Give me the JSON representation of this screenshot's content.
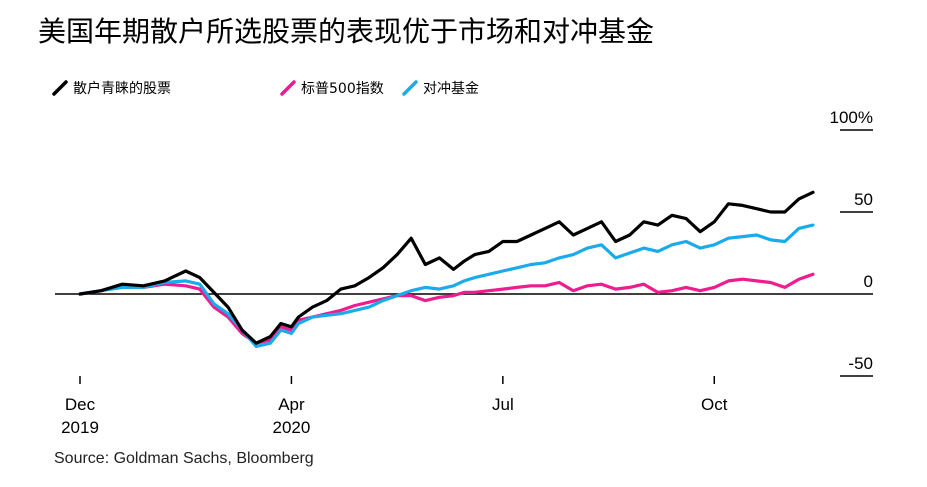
{
  "title": "美国年期散户所选股票的表现优于市场和对冲基金",
  "source": "Source: Goldman Sachs, Bloomberg",
  "colors": {
    "retail": "#000000",
    "sp500": "#ee1c8f",
    "hedge": "#1aabea"
  },
  "chart_data": {
    "type": "line",
    "title": "美国年期散户所选股票的表现优于市场和对冲基金",
    "ylabel": "%",
    "ylim": [
      -50,
      100
    ],
    "yticks": [
      "100%",
      "50",
      "0",
      "-50"
    ],
    "xticks": [
      {
        "line1": "Dec",
        "line2": "2019"
      },
      {
        "line1": "Apr",
        "line2": "2020"
      },
      {
        "line1": "Jul",
        "line2": ""
      },
      {
        "line1": "Oct",
        "line2": ""
      }
    ],
    "x_unit": "months since start of Dec 2019",
    "x_range": [
      0,
      10.5
    ],
    "series": [
      {
        "name": "散户青睐的股票",
        "color": "#000000",
        "x": [
          0,
          0.3,
          0.6,
          0.9,
          1.2,
          1.5,
          1.7,
          1.9,
          2.1,
          2.3,
          2.5,
          2.7,
          2.85,
          3.0,
          3.1,
          3.3,
          3.5,
          3.7,
          3.9,
          4.1,
          4.3,
          4.5,
          4.7,
          4.9,
          5.1,
          5.3,
          5.45,
          5.6,
          5.8,
          6.0,
          6.2,
          6.4,
          6.6,
          6.8,
          7.0,
          7.2,
          7.4,
          7.6,
          7.8,
          8.0,
          8.2,
          8.4,
          8.6,
          8.8,
          9.0,
          9.2,
          9.4,
          9.6,
          9.8,
          10.0,
          10.2,
          10.4
        ],
        "values": [
          0,
          2,
          6,
          5,
          8,
          14,
          10,
          1,
          -8,
          -22,
          -30,
          -26,
          -18,
          -20,
          -14,
          -8,
          -4,
          3,
          5,
          10,
          16,
          24,
          34,
          18,
          22,
          15,
          20,
          24,
          26,
          32,
          32,
          36,
          40,
          44,
          36,
          40,
          44,
          32,
          36,
          44,
          42,
          48,
          46,
          38,
          44,
          55,
          54,
          52,
          50,
          50,
          58,
          62
        ]
      },
      {
        "name": "标普500指数",
        "color": "#ee1c8f",
        "x": [
          0,
          0.3,
          0.6,
          0.9,
          1.2,
          1.5,
          1.7,
          1.9,
          2.1,
          2.3,
          2.5,
          2.7,
          2.85,
          3.0,
          3.1,
          3.3,
          3.5,
          3.7,
          3.9,
          4.1,
          4.3,
          4.5,
          4.7,
          4.9,
          5.1,
          5.3,
          5.45,
          5.6,
          5.8,
          6.0,
          6.2,
          6.4,
          6.6,
          6.8,
          7.0,
          7.2,
          7.4,
          7.6,
          7.8,
          8.0,
          8.2,
          8.4,
          8.6,
          8.8,
          9.0,
          9.2,
          9.4,
          9.6,
          9.8,
          10.0,
          10.2,
          10.4
        ],
        "values": [
          0,
          2,
          5,
          4,
          6,
          5,
          3,
          -8,
          -14,
          -24,
          -30,
          -28,
          -20,
          -22,
          -16,
          -14,
          -12,
          -10,
          -7,
          -5,
          -3,
          -1,
          -1,
          -4,
          -2,
          -1,
          1,
          1,
          2,
          3,
          4,
          5,
          5,
          7,
          2,
          5,
          6,
          3,
          4,
          6,
          1,
          2,
          4,
          2,
          4,
          8,
          9,
          8,
          7,
          4,
          9,
          12
        ]
      },
      {
        "name": "对冲基金",
        "color": "#1aabea",
        "x": [
          0,
          0.3,
          0.6,
          0.9,
          1.2,
          1.5,
          1.7,
          1.9,
          2.1,
          2.3,
          2.5,
          2.7,
          2.85,
          3.0,
          3.1,
          3.3,
          3.5,
          3.7,
          3.9,
          4.1,
          4.3,
          4.5,
          4.7,
          4.9,
          5.1,
          5.3,
          5.45,
          5.6,
          5.8,
          6.0,
          6.2,
          6.4,
          6.6,
          6.8,
          7.0,
          7.2,
          7.4,
          7.6,
          7.8,
          8.0,
          8.2,
          8.4,
          8.6,
          8.8,
          9.0,
          9.2,
          9.4,
          9.6,
          9.8,
          10.0,
          10.2,
          10.4
        ],
        "values": [
          0,
          2,
          4,
          4,
          7,
          8,
          6,
          -6,
          -12,
          -22,
          -32,
          -30,
          -22,
          -24,
          -18,
          -14,
          -13,
          -12,
          -10,
          -8,
          -4,
          -1,
          2,
          4,
          3,
          5,
          8,
          10,
          12,
          14,
          16,
          18,
          19,
          22,
          24,
          28,
          30,
          22,
          25,
          28,
          26,
          30,
          32,
          28,
          30,
          34,
          35,
          36,
          33,
          32,
          40,
          42
        ]
      }
    ]
  }
}
